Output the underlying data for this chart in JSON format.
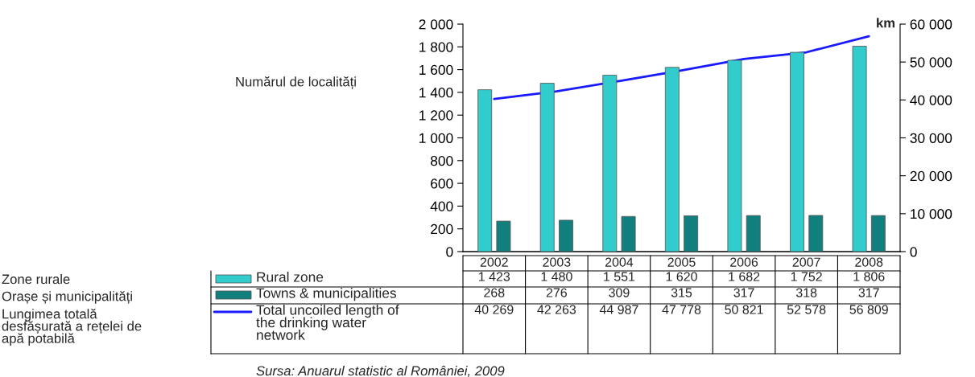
{
  "chart_data": {
    "type": "bar",
    "categories": [
      "2002",
      "2003",
      "2004",
      "2005",
      "2006",
      "2007",
      "2008"
    ],
    "series": [
      {
        "name": "Rural zone",
        "color": "#33cccc",
        "values": [
          1423,
          1480,
          1551,
          1620,
          1682,
          1752,
          1806
        ],
        "value_labels": [
          "1 423",
          "1 480",
          "1 551",
          "1 620",
          "1 682",
          "1 752",
          "1 806"
        ]
      },
      {
        "name": "Towns & municipalities",
        "color": "#127f7f",
        "values": [
          268,
          276,
          309,
          315,
          317,
          318,
          317
        ],
        "value_labels": [
          "268",
          "276",
          "309",
          "315",
          "317",
          "318",
          "317"
        ]
      },
      {
        "name": "Total uncoiled length of\nthe drinking water\nnetwork",
        "type": "line",
        "axis": "y2",
        "color": "#1a1aff",
        "values": [
          40269,
          42263,
          44987,
          47778,
          50821,
          52578,
          56809
        ],
        "value_labels": [
          "40 269",
          "42 263",
          "44 987",
          "47 778",
          "50 821",
          "52 578",
          "56 809"
        ]
      }
    ],
    "ylim": [
      0,
      2000
    ],
    "yticks": [
      0,
      {
        "value": 200,
        "label": "200"
      },
      {
        "value": 400,
        "label": "400"
      },
      {
        "value": 600,
        "label": "600"
      },
      {
        "value": 800,
        "label": "800"
      },
      {
        "value": 1000,
        "label": "1 000"
      },
      {
        "value": 1200,
        "label": "1 200"
      },
      {
        "value": 1400,
        "label": "1 400"
      },
      {
        "value": 1600,
        "label": "1 600"
      },
      {
        "value": 1800,
        "label": "1 800"
      },
      {
        "value": 2000,
        "label": "2 000"
      }
    ],
    "y2lim": [
      0,
      60000
    ],
    "y2ticks": [
      0,
      {
        "value": 10000,
        "label": "10 000"
      },
      {
        "value": 20000,
        "label": "20 000"
      },
      {
        "value": 30000,
        "label": "30 000"
      },
      {
        "value": 40000,
        "label": "40 000"
      },
      {
        "value": 50000,
        "label": "50 000"
      },
      {
        "value": 60000,
        "label": "60 000"
      }
    ],
    "y2label": "km",
    "ylabel": "Numărul de localități",
    "legend": "bottom",
    "grid": false,
    "marker": "none",
    "line_style": "solid",
    "annotations": [
      "Zone rurale",
      "Orașe și municipalități",
      "Lungimea totală\ndesfășurată a rețelei de\napă potabilă",
      "Sursa: Anuarul statistic al României, 2009"
    ]
  }
}
